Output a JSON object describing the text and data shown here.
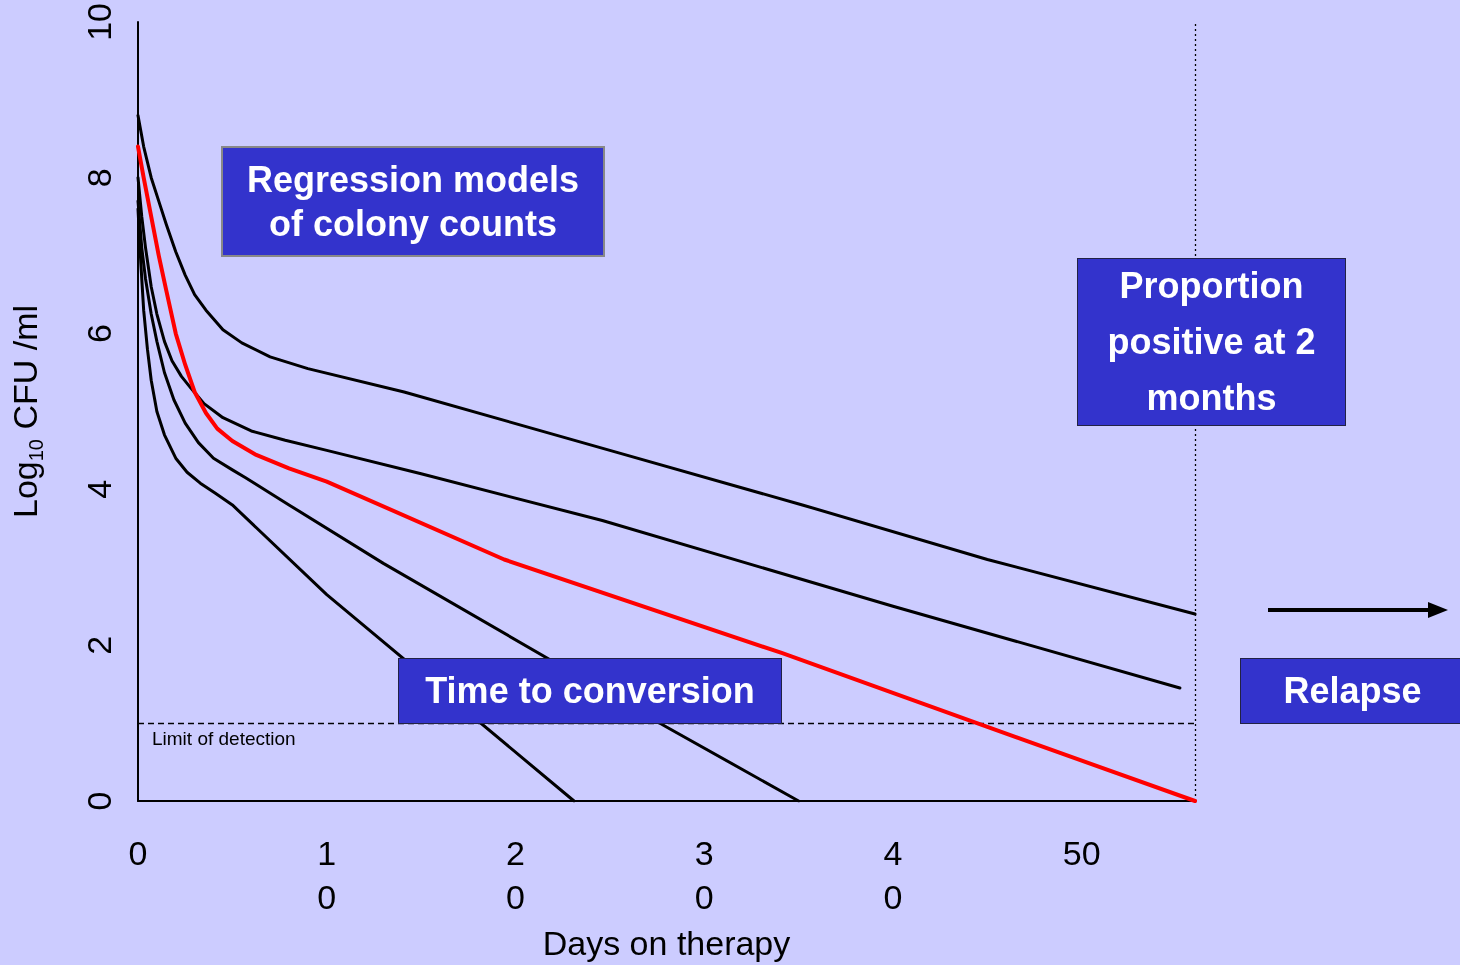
{
  "chart_data": {
    "type": "line",
    "xlabel": "Days on therapy",
    "ylabel": "Log$_{10}$ CFU /ml",
    "xlim": [
      0,
      56
    ],
    "xticks": [
      0,
      {
        "value": 10,
        "label": "1\n0"
      },
      {
        "value": 20,
        "label": "2\n0"
      },
      {
        "value": 30,
        "label": "3\n0"
      },
      {
        "value": 40,
        "label": "4\n0"
      },
      50
    ],
    "ylim": [
      0,
      10
    ],
    "yticks": [
      0,
      2,
      4,
      6,
      8,
      10
    ],
    "grid": false,
    "marker": "none",
    "line_style": "solid",
    "series": [
      {
        "color": "#000000",
        "x": [
          0,
          0.3,
          0.7,
          1.1,
          1.5,
          2,
          2.5,
          3,
          3.6,
          4.5,
          5.5,
          7,
          9,
          14.1,
          25,
          35.2,
          45,
          56
        ],
        "values": [
          8.8,
          8.4,
          8.0,
          7.7,
          7.4,
          7.05,
          6.75,
          6.5,
          6.3,
          6.05,
          5.88,
          5.7,
          5.55,
          5.25,
          4.5,
          3.8,
          3.1,
          2.4
        ]
      },
      {
        "color": "#000000",
        "x": [
          0,
          0.2,
          0.4,
          0.7,
          1,
          1.4,
          1.8,
          2.3,
          2.8,
          3.5,
          4.5,
          6,
          7.8,
          10,
          15,
          24.6,
          40,
          55.2
        ],
        "values": [
          8.0,
          7.5,
          7.1,
          6.6,
          6.25,
          5.9,
          5.65,
          5.45,
          5.3,
          5.1,
          4.92,
          4.75,
          4.63,
          4.5,
          4.2,
          3.6,
          2.5,
          1.45
        ]
      },
      {
        "color": "#ff0000",
        "x": [
          0,
          0.3,
          0.7,
          1.1,
          1.5,
          2,
          2.5,
          3,
          3.6,
          4.2,
          5,
          6.2,
          8,
          10,
          19.4,
          34.1,
          45,
          56
        ],
        "values": [
          8.4,
          8.0,
          7.5,
          7.0,
          6.55,
          6.0,
          5.6,
          5.25,
          4.98,
          4.78,
          4.62,
          4.45,
          4.27,
          4.1,
          3.1,
          1.9,
          0.95,
          0
        ]
      },
      {
        "color": "#000000",
        "x": [
          0,
          0.2,
          0.4,
          0.7,
          1,
          1.4,
          1.9,
          2.5,
          3.2,
          4,
          5,
          5.7,
          8,
          13,
          28,
          35
        ],
        "values": [
          7.7,
          7.1,
          6.7,
          6.25,
          5.9,
          5.5,
          5.15,
          4.85,
          4.6,
          4.4,
          4.25,
          4.15,
          3.8,
          3.05,
          0.95,
          0
        ]
      },
      {
        "color": "#000000",
        "x": [
          0,
          0.15,
          0.3,
          0.5,
          0.7,
          1,
          1.4,
          2,
          2.6,
          3.3,
          4.1,
          5,
          10,
          23.1
        ],
        "values": [
          7.6,
          6.9,
          6.3,
          5.8,
          5.4,
          5.0,
          4.7,
          4.4,
          4.22,
          4.08,
          3.95,
          3.8,
          2.65,
          0
        ]
      }
    ],
    "ref_lines": [
      {
        "axis": "y",
        "value": 1,
        "label": "Limit of detection",
        "line_style": "dashed",
        "color": "#000000"
      },
      {
        "axis": "x",
        "value": 56,
        "label": null,
        "line_style": "dotted",
        "color": "#000000"
      }
    ],
    "annotations": [
      "Regression models of colony counts",
      "Time to conversion",
      "Proportion positive at  2 months",
      "Relapse"
    ]
  }
}
